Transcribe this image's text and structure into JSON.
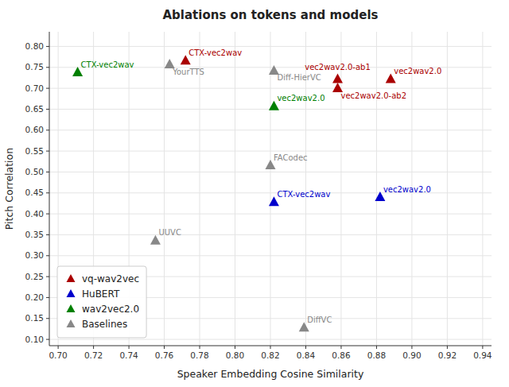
{
  "chart_data": {
    "type": "scatter",
    "title": "Ablations on tokens and models",
    "x_label": "Speaker Embedding Cosine Similarity",
    "y_label": "Pitch Correlation",
    "xlim": [
      0.695,
      0.945
    ],
    "ylim": [
      0.085,
      0.835
    ],
    "xticks": [
      {
        "value": 0.7,
        "label": "0.70"
      },
      0.72,
      0.74,
      0.76,
      0.78,
      {
        "value": 0.8,
        "label": "0.80"
      },
      0.82,
      0.84,
      0.86,
      0.88,
      {
        "value": 0.9,
        "label": "0.90"
      },
      0.92,
      0.94
    ],
    "yticks": [
      {
        "value": 0.1,
        "label": "0.10"
      },
      0.15,
      {
        "value": 0.2,
        "label": "0.20"
      },
      0.25,
      {
        "value": 0.3,
        "label": "0.30"
      },
      0.35,
      {
        "value": 0.4,
        "label": "0.40"
      },
      0.45,
      {
        "value": 0.5,
        "label": "0.50"
      },
      0.55,
      {
        "value": 0.6,
        "label": "0.60"
      },
      0.65,
      {
        "value": 0.7,
        "label": "0.70"
      },
      0.75,
      {
        "value": 0.8,
        "label": "0.80"
      }
    ],
    "grid": true,
    "legend": "lower left",
    "marker": "triangle",
    "series": [
      {
        "name": "vq-wav2vec",
        "color": "#aa0000",
        "x": [
          0.772,
          0.858,
          0.858,
          0.888
        ],
        "values": [
          0.766,
          0.722,
          0.7,
          0.722
        ],
        "labels": [
          "CTX-vec2wav",
          "vec2wav2.0-ab1",
          "vec2wav2.0-ab2",
          "vec2wav2.0"
        ]
      },
      {
        "name": "HuBERT",
        "color": "#0000cc",
        "x": [
          0.822,
          0.882
        ],
        "values": [
          0.428,
          0.44
        ],
        "labels": [
          "CTX-vec2wav",
          "vec2wav2.0"
        ]
      },
      {
        "name": "wav2vec2.0",
        "color": "#008000",
        "x": [
          0.711,
          0.822
        ],
        "values": [
          0.738,
          0.657
        ],
        "labels": [
          "CTX-vec2wav",
          "vec2wav2.0"
        ]
      },
      {
        "name": "Baselines",
        "color": "#888888",
        "x": [
          0.763,
          0.822,
          0.82,
          0.755,
          0.839
        ],
        "values": [
          0.757,
          0.742,
          0.516,
          0.336,
          0.128
        ],
        "labels": [
          "YourTTS",
          "Diff-HierVC",
          "FACodec",
          "UUVC",
          "DiffVC"
        ]
      }
    ]
  }
}
